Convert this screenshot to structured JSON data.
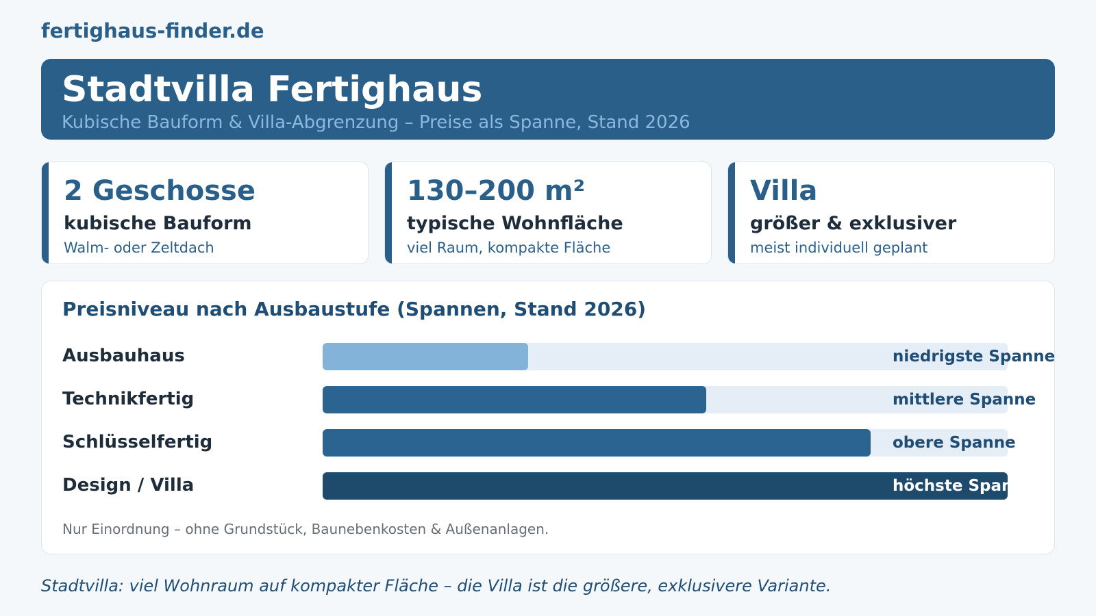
{
  "site": "fertighaus-finder.de",
  "header": {
    "title": "Stadtvilla Fertighaus",
    "subtitle": "Kubische Bauform & Villa-Abgrenzung – Preise als Spanne, Stand 2026"
  },
  "cards": [
    {
      "big": "2 Geschosse",
      "mid": "kubische Bauform",
      "small": "Walm- oder Zeltdach"
    },
    {
      "big": "130–200 m²",
      "mid": "typische Wohnfläche",
      "small": "viel Raum, kompakte Fläche"
    },
    {
      "big": "Villa",
      "mid": "größer & exklusiver",
      "small": "meist individuell geplant"
    }
  ],
  "colors": {
    "accent": "#2a5f8a",
    "bar_light": "#84b3da",
    "bar_mid": "#2b6490",
    "bar_dark": "#1e4a6b",
    "track": "#e5edf6"
  },
  "chart_data": {
    "type": "bar",
    "orientation": "horizontal",
    "title": "Preisniveau nach Ausbaustufe (Spannen, Stand 2026)",
    "categories": [
      "Ausbauhaus",
      "Technikfertig",
      "Schlüsselfertig",
      "Design / Villa"
    ],
    "values": [
      0.3,
      0.56,
      0.8,
      1.0
    ],
    "value_labels": [
      "niedrigste Spanne",
      "mittlere Spanne",
      "obere Spanne",
      "höchste Spanne"
    ],
    "bar_colors": [
      "#84b3da",
      "#2b6490",
      "#2b6490",
      "#1e4a6b"
    ],
    "label_colors": [
      "#1f4d73",
      "#1f4d73",
      "#1f4d73",
      "#ffffff"
    ],
    "xlim": [
      0,
      1
    ],
    "note": "Nur Einordnung – ohne Grundstück, Baunebenkosten & Außenanlagen."
  },
  "footer": "Stadtvilla: viel Wohnraum auf kompakter Fläche – die Villa ist die größere, exklusivere Variante."
}
